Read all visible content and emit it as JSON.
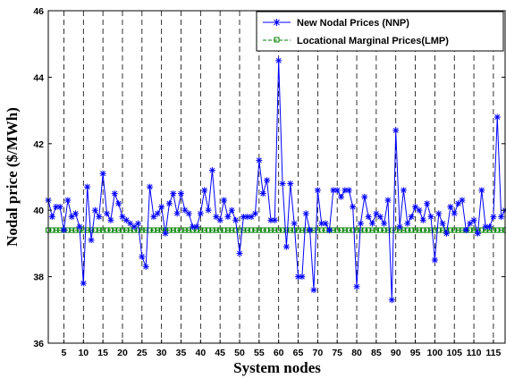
{
  "chart_data": {
    "type": "line",
    "title": "",
    "xlabel": "System nodes",
    "ylabel": "Nodal price ($/MWh)",
    "xlim": [
      1,
      118
    ],
    "ylim": [
      36,
      46
    ],
    "yticks": [
      "36",
      "38",
      "40",
      "42",
      "44",
      "46"
    ],
    "xticks": [
      "5",
      "10",
      "15",
      "20",
      "25",
      "30",
      "35",
      "40",
      "45",
      "50",
      "55",
      "60",
      "65",
      "70",
      "75",
      "80",
      "85",
      "90",
      "95",
      "100",
      "105",
      "110",
      "115"
    ],
    "xtick_values": [
      5,
      10,
      15,
      20,
      25,
      30,
      35,
      40,
      45,
      50,
      55,
      60,
      65,
      70,
      75,
      80,
      85,
      90,
      95,
      100,
      105,
      110,
      115
    ],
    "grid": "vertical dashed lines at every x tick",
    "legend_position": "top-right",
    "series": [
      {
        "name": "New Nodal Prices (NNP)",
        "color": "#0000ff",
        "marker": "asterisk",
        "x": [
          1,
          2,
          3,
          4,
          5,
          6,
          7,
          8,
          9,
          10,
          11,
          12,
          13,
          14,
          15,
          16,
          17,
          18,
          19,
          20,
          21,
          22,
          23,
          24,
          25,
          26,
          27,
          28,
          29,
          30,
          31,
          32,
          33,
          34,
          35,
          36,
          37,
          38,
          39,
          40,
          41,
          42,
          43,
          44,
          45,
          46,
          47,
          48,
          49,
          50,
          51,
          52,
          53,
          54,
          55,
          56,
          57,
          58,
          59,
          60,
          61,
          62,
          63,
          64,
          65,
          66,
          67,
          68,
          69,
          70,
          71,
          72,
          73,
          74,
          75,
          76,
          77,
          78,
          79,
          80,
          81,
          82,
          83,
          84,
          85,
          86,
          87,
          88,
          89,
          90,
          91,
          92,
          93,
          94,
          95,
          96,
          97,
          98,
          99,
          100,
          101,
          102,
          103,
          104,
          105,
          106,
          107,
          108,
          109,
          110,
          111,
          112,
          113,
          114,
          115,
          116,
          117,
          118
        ],
        "values": [
          40.3,
          39.8,
          40.1,
          40.1,
          39.4,
          40.3,
          39.8,
          39.9,
          39.5,
          37.8,
          40.7,
          39.1,
          40.0,
          39.8,
          41.1,
          39.9,
          39.7,
          40.5,
          40.2,
          39.8,
          39.7,
          39.6,
          39.5,
          39.6,
          38.6,
          38.3,
          40.7,
          39.8,
          39.9,
          40.1,
          39.3,
          40.2,
          40.5,
          39.9,
          40.5,
          40.0,
          39.9,
          39.5,
          39.5,
          39.9,
          40.6,
          40.0,
          41.2,
          39.8,
          39.7,
          40.3,
          39.8,
          40.0,
          39.7,
          38.7,
          39.8,
          39.8,
          39.8,
          39.9,
          41.5,
          40.5,
          40.9,
          39.7,
          39.7,
          44.5,
          40.8,
          38.9,
          40.8,
          39.6,
          38.0,
          38.0,
          39.9,
          39.4,
          37.6,
          40.6,
          39.6,
          39.6,
          39.4,
          40.6,
          40.6,
          40.4,
          40.6,
          40.6,
          40.1,
          37.7,
          39.6,
          40.4,
          39.8,
          39.6,
          39.9,
          39.8,
          39.6,
          40.3,
          37.3,
          42.4,
          39.5,
          40.6,
          39.6,
          39.8,
          40.1,
          40.0,
          39.7,
          40.2,
          39.8,
          38.5,
          39.9,
          39.6,
          39.3,
          40.1,
          39.9,
          40.2,
          40.3,
          39.4,
          39.6,
          39.7,
          39.3,
          40.6,
          39.5,
          39.5,
          39.8,
          42.8,
          39.8,
          40.0
        ]
      },
      {
        "name": "Locational Marginal Prices(LMP)",
        "color": "#008000",
        "marker": "square",
        "x_start": 1,
        "x_end": 118,
        "value": 39.4
      }
    ]
  }
}
